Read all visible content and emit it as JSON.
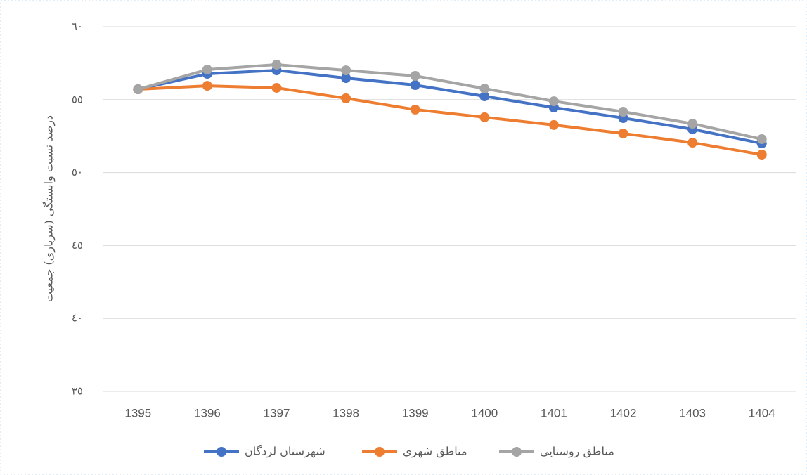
{
  "chart_data": {
    "type": "line",
    "y_label": "درصد نسبت وابستگی (سرباری) جمعیت",
    "categories": [
      "1395",
      "1396",
      "1397",
      "1398",
      "1399",
      "1400",
      "1401",
      "1402",
      "1403",
      "1404"
    ],
    "series": [
      {
        "name": "شهرستان لردگان",
        "color": "#4472c4",
        "values": [
          55.71,
          56.77,
          57.01,
          56.48,
          56.0,
          55.23,
          54.46,
          53.74,
          52.97,
          52.0
        ]
      },
      {
        "name": "مناطق شهری",
        "color": "#ed7d31",
        "values": [
          55.71,
          55.95,
          55.81,
          55.09,
          54.32,
          53.79,
          53.26,
          52.68,
          52.05,
          51.23
        ]
      },
      {
        "name": "مناطق روستایی",
        "color": "#a5a5a5",
        "values": [
          55.71,
          57.06,
          57.4,
          57.01,
          56.63,
          55.76,
          54.89,
          54.17,
          53.35,
          52.29
        ]
      }
    ],
    "ylim": [
      35,
      60
    ],
    "yticks": [
      {
        "value": 35,
        "label": "٣٥"
      },
      {
        "value": 40,
        "label": "٤٠"
      },
      {
        "value": 45,
        "label": "٤٥"
      },
      {
        "value": 50,
        "label": "٥٠"
      },
      {
        "value": 55,
        "label": "٥٥"
      },
      {
        "value": 60,
        "label": "٦٠"
      }
    ],
    "grid": true
  }
}
